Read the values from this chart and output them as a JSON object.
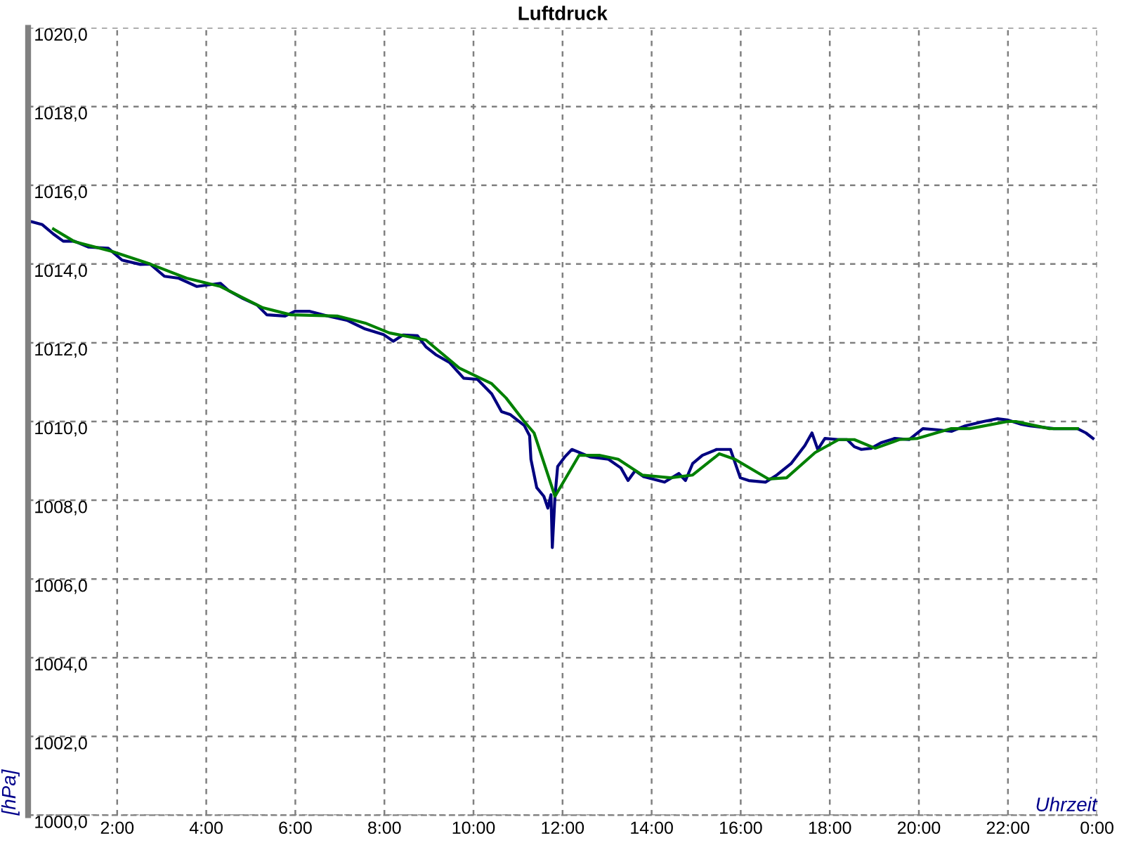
{
  "chart_data": {
    "type": "line",
    "title": "Luftdruck",
    "xlabel": "Uhrzeit",
    "ylabel": "[hPa]",
    "xlim": [
      0,
      24
    ],
    "ylim": [
      1000,
      1020
    ],
    "xticks": [
      {
        "value": 2,
        "label": "2:00"
      },
      {
        "value": 4,
        "label": "4:00"
      },
      {
        "value": 6,
        "label": "6:00"
      },
      {
        "value": 8,
        "label": "8:00"
      },
      {
        "value": 10,
        "label": "10:00"
      },
      {
        "value": 12,
        "label": "12:00"
      },
      {
        "value": 14,
        "label": "14:00"
      },
      {
        "value": 16,
        "label": "16:00"
      },
      {
        "value": 18,
        "label": "18:00"
      },
      {
        "value": 20,
        "label": "20:00"
      },
      {
        "value": 22,
        "label": "22:00"
      },
      {
        "value": 24,
        "label": "0:00"
      }
    ],
    "yticks": [
      {
        "value": 1000,
        "label": "1000,0"
      },
      {
        "value": 1002,
        "label": "1002,0"
      },
      {
        "value": 1004,
        "label": "1004,0"
      },
      {
        "value": 1006,
        "label": "1006,0"
      },
      {
        "value": 1008,
        "label": "1008,0"
      },
      {
        "value": 1010,
        "label": "1010,0"
      },
      {
        "value": 1012,
        "label": "1012,0"
      },
      {
        "value": 1014,
        "label": "1014,0"
      },
      {
        "value": 1016,
        "label": "1016,0"
      },
      {
        "value": 1018,
        "label": "1018,0"
      },
      {
        "value": 1020,
        "label": "1020,0"
      }
    ],
    "grid": true,
    "line_style": "solid",
    "marker": "none",
    "series": [
      {
        "color": "#000080",
        "x": [
          0.09,
          0.32,
          0.57,
          0.79,
          1.04,
          1.36,
          1.8,
          2.11,
          2.52,
          2.74,
          3.06,
          3.38,
          3.79,
          4.32,
          4.51,
          4.83,
          5.14,
          5.36,
          5.77,
          5.99,
          6.31,
          6.72,
          7.16,
          7.57,
          7.98,
          8.2,
          8.42,
          8.74,
          8.93,
          9.15,
          9.46,
          9.78,
          10.09,
          10.41,
          10.63,
          10.82,
          11.14,
          11.26,
          11.29,
          11.42,
          11.58,
          11.67,
          11.74,
          11.77,
          11.83,
          11.89,
          12.05,
          12.21,
          12.62,
          13.03,
          13.31,
          13.47,
          13.63,
          13.82,
          14.29,
          14.61,
          14.76,
          14.92,
          15.14,
          15.46,
          15.77,
          15.99,
          16.18,
          16.56,
          16.81,
          17.13,
          17.44,
          17.6,
          17.73,
          17.89,
          18.2,
          18.39,
          18.55,
          18.71,
          18.93,
          19.15,
          19.46,
          19.78,
          20.09,
          20.41,
          20.73,
          21.04,
          21.45,
          21.77,
          21.99,
          22.3,
          22.49,
          23.03,
          23.56,
          23.75,
          23.91
        ],
        "values": [
          1015.07,
          1015.0,
          1014.76,
          1014.58,
          1014.58,
          1014.43,
          1014.4,
          1014.1,
          1013.99,
          1014.0,
          1013.69,
          1013.64,
          1013.43,
          1013.51,
          1013.32,
          1013.12,
          1012.96,
          1012.71,
          1012.68,
          1012.8,
          1012.8,
          1012.68,
          1012.57,
          1012.35,
          1012.21,
          1012.04,
          1012.2,
          1012.18,
          1011.9,
          1011.7,
          1011.5,
          1011.1,
          1011.07,
          1010.7,
          1010.25,
          1010.18,
          1009.9,
          1009.64,
          1009.04,
          1008.32,
          1008.1,
          1007.8,
          1008.14,
          1006.8,
          1008.1,
          1008.86,
          1009.1,
          1009.29,
          1009.1,
          1009.04,
          1008.82,
          1008.5,
          1008.75,
          1008.6,
          1008.46,
          1008.68,
          1008.5,
          1008.93,
          1009.14,
          1009.29,
          1009.29,
          1008.57,
          1008.5,
          1008.46,
          1008.64,
          1008.93,
          1009.39,
          1009.71,
          1009.29,
          1009.57,
          1009.54,
          1009.54,
          1009.36,
          1009.29,
          1009.32,
          1009.46,
          1009.57,
          1009.54,
          1009.82,
          1009.79,
          1009.75,
          1009.89,
          1010.0,
          1010.07,
          1010.04,
          1009.93,
          1009.89,
          1009.82,
          1009.82,
          1009.71,
          1009.57
        ]
      },
      {
        "color": "#008000",
        "x": [
          0.57,
          1.04,
          1.89,
          2.74,
          3.56,
          4.32,
          5.27,
          5.9,
          6.94,
          7.57,
          8.11,
          8.93,
          9.68,
          10.41,
          10.73,
          11.14,
          11.36,
          11.83,
          12.37,
          12.84,
          13.25,
          13.79,
          14.42,
          14.92,
          15.52,
          15.87,
          16.62,
          17.03,
          17.67,
          18.2,
          18.55,
          19.02,
          19.56,
          19.97,
          20.73,
          21.14,
          21.99,
          22.18,
          22.93,
          23.56
        ],
        "values": [
          1014.89,
          1014.57,
          1014.32,
          1014.0,
          1013.64,
          1013.43,
          1012.89,
          1012.71,
          1012.68,
          1012.5,
          1012.25,
          1012.07,
          1011.36,
          1010.96,
          1010.6,
          1010.0,
          1009.71,
          1008.1,
          1009.14,
          1009.14,
          1009.04,
          1008.64,
          1008.57,
          1008.64,
          1009.18,
          1009.04,
          1008.54,
          1008.57,
          1009.21,
          1009.54,
          1009.54,
          1009.32,
          1009.54,
          1009.57,
          1009.82,
          1009.82,
          1010.0,
          1010.0,
          1009.82,
          1009.82
        ]
      }
    ]
  }
}
